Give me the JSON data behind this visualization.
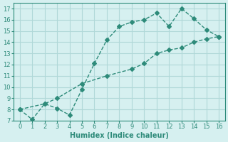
{
  "line1_x": [
    0,
    1,
    2,
    3,
    4,
    5,
    6,
    7,
    8,
    9,
    10,
    11,
    12,
    13,
    14,
    15,
    16
  ],
  "line1_y": [
    8.0,
    7.1,
    8.5,
    8.1,
    7.5,
    9.8,
    12.1,
    14.2,
    15.4,
    15.8,
    16.0,
    16.6,
    15.4,
    17.0,
    16.1,
    15.1,
    14.5
  ],
  "line2_x": [
    0,
    2,
    3,
    5,
    7,
    9,
    10,
    11,
    12,
    13,
    14,
    15,
    16
  ],
  "line2_y": [
    8.0,
    8.5,
    9.0,
    10.3,
    11.0,
    11.6,
    12.1,
    13.0,
    13.3,
    13.5,
    14.0,
    14.3,
    14.5
  ],
  "line_color": "#2e8b7a",
  "bg_color": "#d6f0f0",
  "grid_color": "#b0d8d8",
  "xlabel": "Humidex (Indice chaleur)",
  "ylim": [
    7,
    17.5
  ],
  "xlim": [
    -0.5,
    16.5
  ],
  "yticks": [
    7,
    8,
    9,
    10,
    11,
    12,
    13,
    14,
    15,
    16,
    17
  ],
  "xticks": [
    0,
    1,
    2,
    3,
    4,
    5,
    6,
    7,
    8,
    9,
    10,
    11,
    12,
    13,
    14,
    15,
    16
  ]
}
